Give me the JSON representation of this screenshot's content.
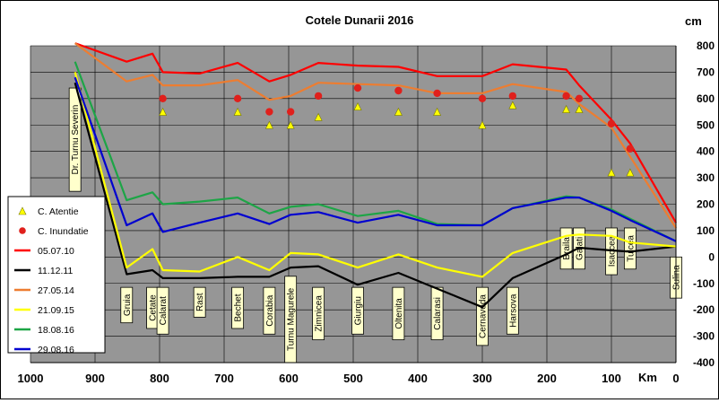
{
  "chart_data": {
    "type": "line",
    "title": "Cotele Dunarii 2016",
    "xlabel": "Km",
    "ylabel": "cm",
    "xlim": [
      1000,
      0
    ],
    "ylim": [
      -400,
      800
    ],
    "x_ticks": [
      1000,
      900,
      800,
      700,
      600,
      500,
      400,
      300,
      200,
      100,
      0
    ],
    "y_ticks": [
      -400,
      -300,
      -200,
      -100,
      0,
      100,
      200,
      300,
      400,
      500,
      600,
      700,
      800
    ],
    "grid": true,
    "legend_position": "left",
    "stations": [
      {
        "name": "Dr. Turnu Severin",
        "km": 931,
        "y": 640,
        "high": true
      },
      {
        "name": "Gruia",
        "km": 851,
        "y": -115,
        "high": false
      },
      {
        "name": "Cetate",
        "km": 811,
        "y": -115,
        "high": false
      },
      {
        "name": "Calarat",
        "km": 795,
        "y": -115,
        "high": false
      },
      {
        "name": "Rast",
        "km": 738,
        "y": -115,
        "high": false
      },
      {
        "name": "Bechet",
        "km": 679,
        "y": -115,
        "high": false
      },
      {
        "name": "Corabia",
        "km": 630,
        "y": -115,
        "high": false
      },
      {
        "name": "Turnu Magurele",
        "km": 597,
        "y": -115,
        "high": false
      },
      {
        "name": "Zimnicea",
        "km": 554,
        "y": -115,
        "high": false
      },
      {
        "name": "Giurgiu",
        "km": 493,
        "y": -115,
        "high": false
      },
      {
        "name": "Oltenita",
        "km": 430,
        "y": -115,
        "high": false
      },
      {
        "name": "Calarasi",
        "km": 370,
        "y": -115,
        "high": false
      },
      {
        "name": "Cernavoda",
        "km": 300,
        "y": -115,
        "high": false
      },
      {
        "name": "Harsova",
        "km": 253,
        "y": -115,
        "high": false
      },
      {
        "name": "Braila",
        "km": 170,
        "y": 110,
        "high": true
      },
      {
        "name": "Galati",
        "km": 150,
        "y": 110,
        "high": true
      },
      {
        "name": "Isaccea",
        "km": 100,
        "y": 110,
        "high": true
      },
      {
        "name": "Tulcea",
        "km": 71,
        "y": 110,
        "high": true
      },
      {
        "name": "Sulina",
        "km": 0,
        "y": 0,
        "high": true
      }
    ],
    "markers": [
      {
        "name": "C. Atentie",
        "color": "#ffff00",
        "x": [
          795,
          679,
          630,
          597,
          554,
          493,
          430,
          370,
          300,
          253,
          170,
          150,
          100,
          71
        ],
        "values": [
          550,
          550,
          500,
          500,
          530,
          570,
          550,
          550,
          500,
          575,
          560,
          560,
          320,
          320
        ]
      },
      {
        "name": "C. Inundatie",
        "color": "#e0201c",
        "x": [
          795,
          679,
          630,
          597,
          554,
          493,
          430,
          370,
          300,
          253,
          170,
          150,
          100,
          71
        ],
        "values": [
          600,
          600,
          550,
          550,
          610,
          640,
          630,
          620,
          600,
          610,
          610,
          600,
          505,
          410
        ]
      }
    ],
    "series": [
      {
        "name": "05.07.10",
        "color": "#ff0000",
        "x": [
          931,
          851,
          811,
          795,
          738,
          679,
          630,
          597,
          554,
          493,
          430,
          370,
          300,
          253,
          170,
          150,
          100,
          71,
          0
        ],
        "values": [
          810,
          740,
          770,
          700,
          695,
          735,
          665,
          690,
          735,
          725,
          720,
          685,
          685,
          730,
          710,
          650,
          520,
          430,
          130
        ]
      },
      {
        "name": "11.12.11",
        "color": "#000000",
        "x": [
          931,
          851,
          811,
          795,
          738,
          679,
          630,
          597,
          554,
          493,
          430,
          370,
          300,
          253,
          170,
          150,
          100,
          71,
          0
        ],
        "values": [
          660,
          -65,
          -50,
          -80,
          -80,
          -75,
          -75,
          -40,
          -35,
          -105,
          -60,
          -120,
          -190,
          -80,
          10,
          35,
          25,
          20,
          40
        ]
      },
      {
        "name": "27.05.14",
        "color": "#ed7d31",
        "x": [
          931,
          851,
          811,
          795,
          738,
          679,
          630,
          597,
          554,
          493,
          430,
          370,
          300,
          253,
          170,
          150,
          100,
          71,
          0
        ],
        "values": [
          810,
          665,
          690,
          650,
          650,
          670,
          595,
          610,
          660,
          655,
          650,
          620,
          620,
          655,
          625,
          580,
          490,
          380,
          110
        ]
      },
      {
        "name": "21.09.15",
        "color": "#ffff00",
        "x": [
          931,
          851,
          811,
          795,
          738,
          679,
          630,
          597,
          554,
          493,
          430,
          370,
          300,
          253,
          170,
          150,
          100,
          71,
          0
        ],
        "values": [
          700,
          -40,
          30,
          -50,
          -55,
          0,
          -50,
          15,
          10,
          -40,
          10,
          -40,
          -75,
          15,
          80,
          85,
          80,
          55,
          40
        ]
      },
      {
        "name": "18.08.16",
        "color": "#1da546",
        "x": [
          931,
          851,
          811,
          795,
          738,
          679,
          630,
          597,
          554,
          493,
          430,
          370,
          300,
          253,
          170,
          150,
          100,
          71,
          0
        ],
        "values": [
          740,
          215,
          245,
          200,
          210,
          225,
          165,
          190,
          200,
          155,
          175,
          125,
          120,
          185,
          230,
          225,
          180,
          145,
          60
        ]
      },
      {
        "name": "29.08.16",
        "color": "#0000d0",
        "x": [
          931,
          851,
          811,
          795,
          738,
          679,
          630,
          597,
          554,
          493,
          430,
          370,
          300,
          253,
          170,
          150,
          100,
          71,
          0
        ],
        "values": [
          680,
          120,
          165,
          95,
          130,
          165,
          125,
          160,
          170,
          130,
          160,
          120,
          120,
          185,
          225,
          225,
          175,
          140,
          60
        ]
      }
    ]
  }
}
